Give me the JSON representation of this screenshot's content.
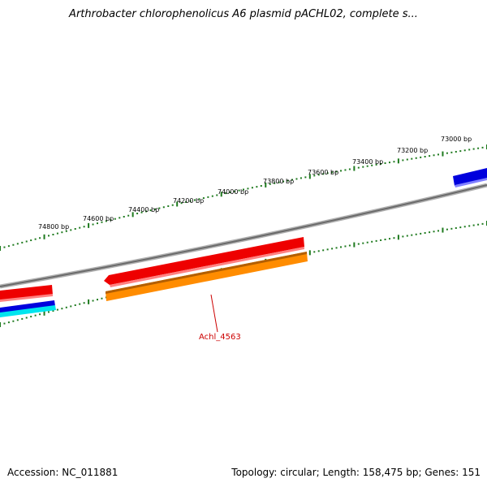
{
  "header": {
    "title": "Arthrobacter chlorophenolicus A6 plasmid pACHL02, complete s..."
  },
  "footer": {
    "accession": "Accession: NC_011881",
    "summary": "Topology: circular; Length: 158,475 bp; Genes: 151"
  },
  "ruler": {
    "labels": [
      "73000 bp",
      "73200 bp",
      "73400 bp",
      "73600 bp",
      "73800 bp",
      "74000 bp",
      "74200 bp",
      "74400 bp",
      "74600 bp",
      "74800 bp"
    ]
  },
  "genes": [
    {
      "label": "Achl_4563"
    }
  ],
  "colors": {
    "backbone": "#808080",
    "tick": "#1e7a1e",
    "cds_red": "#ee0000",
    "cds_orange": "#ff8c00",
    "cds_blue": "#0000dd",
    "cds_cyan": "#00e5ee",
    "label_red": "#cc0000"
  }
}
